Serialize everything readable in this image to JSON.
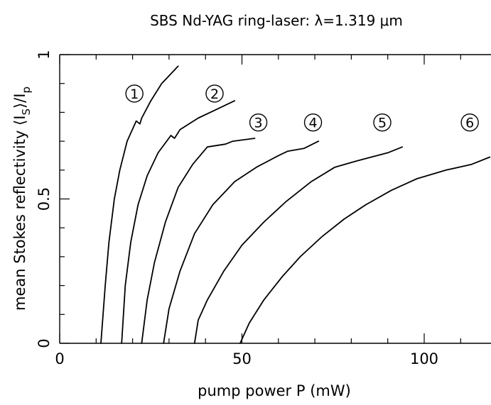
{
  "chart_data": {
    "type": "line",
    "title": "SBS Nd-YAG ring-laser: λ=1.319 μm",
    "xlabel": "pump power P (mW)",
    "ylabel": "mean Stokes reflectivity ⟨I",
    "ylabel_sub1": "S",
    "ylabel_mid": "⟩/I",
    "ylabel_sub2": "p",
    "xlim": [
      0,
      118
    ],
    "ylim": [
      0,
      1
    ],
    "xticks": [
      0,
      50,
      100
    ],
    "yticks": [
      0,
      0.5,
      1
    ],
    "xtick_labels": [
      "0",
      "50",
      "100"
    ],
    "ytick_labels": [
      "0",
      "0.5",
      "1"
    ],
    "grid": false,
    "line_color": "#000000",
    "series": [
      {
        "label": "1",
        "label_pos": [
          20.5,
          0.865
        ],
        "points": [
          [
            11.3,
            0
          ],
          [
            12.5,
            0.2
          ],
          [
            13.5,
            0.35
          ],
          [
            15,
            0.5
          ],
          [
            16.5,
            0.6
          ],
          [
            18.5,
            0.7
          ],
          [
            21,
            0.77
          ],
          [
            22,
            0.76
          ],
          [
            22.5,
            0.78
          ],
          [
            25,
            0.84
          ],
          [
            28,
            0.9
          ],
          [
            32.5,
            0.96
          ]
        ]
      },
      {
        "label": "2",
        "label_pos": [
          42.5,
          0.865
        ],
        "points": [
          [
            17,
            0
          ],
          [
            18,
            0.2
          ],
          [
            19.5,
            0.35
          ],
          [
            21.5,
            0.48
          ],
          [
            24,
            0.58
          ],
          [
            27,
            0.66
          ],
          [
            30.5,
            0.72
          ],
          [
            31.5,
            0.71
          ],
          [
            33,
            0.74
          ],
          [
            38,
            0.78
          ],
          [
            43,
            0.81
          ],
          [
            48,
            0.84
          ]
        ]
      },
      {
        "label": "3",
        "label_pos": [
          54.5,
          0.765
        ],
        "points": [
          [
            22.5,
            0
          ],
          [
            24,
            0.15
          ],
          [
            26,
            0.28
          ],
          [
            29,
            0.42
          ],
          [
            32.5,
            0.54
          ],
          [
            36.5,
            0.62
          ],
          [
            40.5,
            0.68
          ],
          [
            45.5,
            0.69
          ],
          [
            47.5,
            0.7
          ],
          [
            53.5,
            0.71
          ]
        ]
      },
      {
        "label": "4",
        "label_pos": [
          69.5,
          0.765
        ],
        "points": [
          [
            28.5,
            0
          ],
          [
            30,
            0.12
          ],
          [
            33,
            0.25
          ],
          [
            37,
            0.38
          ],
          [
            42,
            0.48
          ],
          [
            48,
            0.56
          ],
          [
            54,
            0.61
          ],
          [
            60,
            0.65
          ],
          [
            62.5,
            0.665
          ],
          [
            67,
            0.675
          ],
          [
            71,
            0.7
          ]
        ]
      },
      {
        "label": "5",
        "label_pos": [
          88.5,
          0.765
        ],
        "points": [
          [
            37,
            0
          ],
          [
            38,
            0.08
          ],
          [
            40.5,
            0.15
          ],
          [
            45,
            0.25
          ],
          [
            50,
            0.34
          ],
          [
            56,
            0.42
          ],
          [
            62,
            0.49
          ],
          [
            69,
            0.56
          ],
          [
            75.5,
            0.61
          ],
          [
            81,
            0.63
          ],
          [
            90,
            0.66
          ],
          [
            94,
            0.68
          ]
        ]
      },
      {
        "label": "6",
        "label_pos": [
          112.5,
          0.765
        ],
        "points": [
          [
            49.5,
            0
          ],
          [
            52,
            0.07
          ],
          [
            56,
            0.15
          ],
          [
            61,
            0.23
          ],
          [
            66,
            0.3
          ],
          [
            72,
            0.37
          ],
          [
            78,
            0.43
          ],
          [
            84,
            0.48
          ],
          [
            91,
            0.53
          ],
          [
            98,
            0.57
          ],
          [
            106,
            0.6
          ],
          [
            113,
            0.62
          ],
          [
            118,
            0.645
          ]
        ]
      }
    ]
  }
}
